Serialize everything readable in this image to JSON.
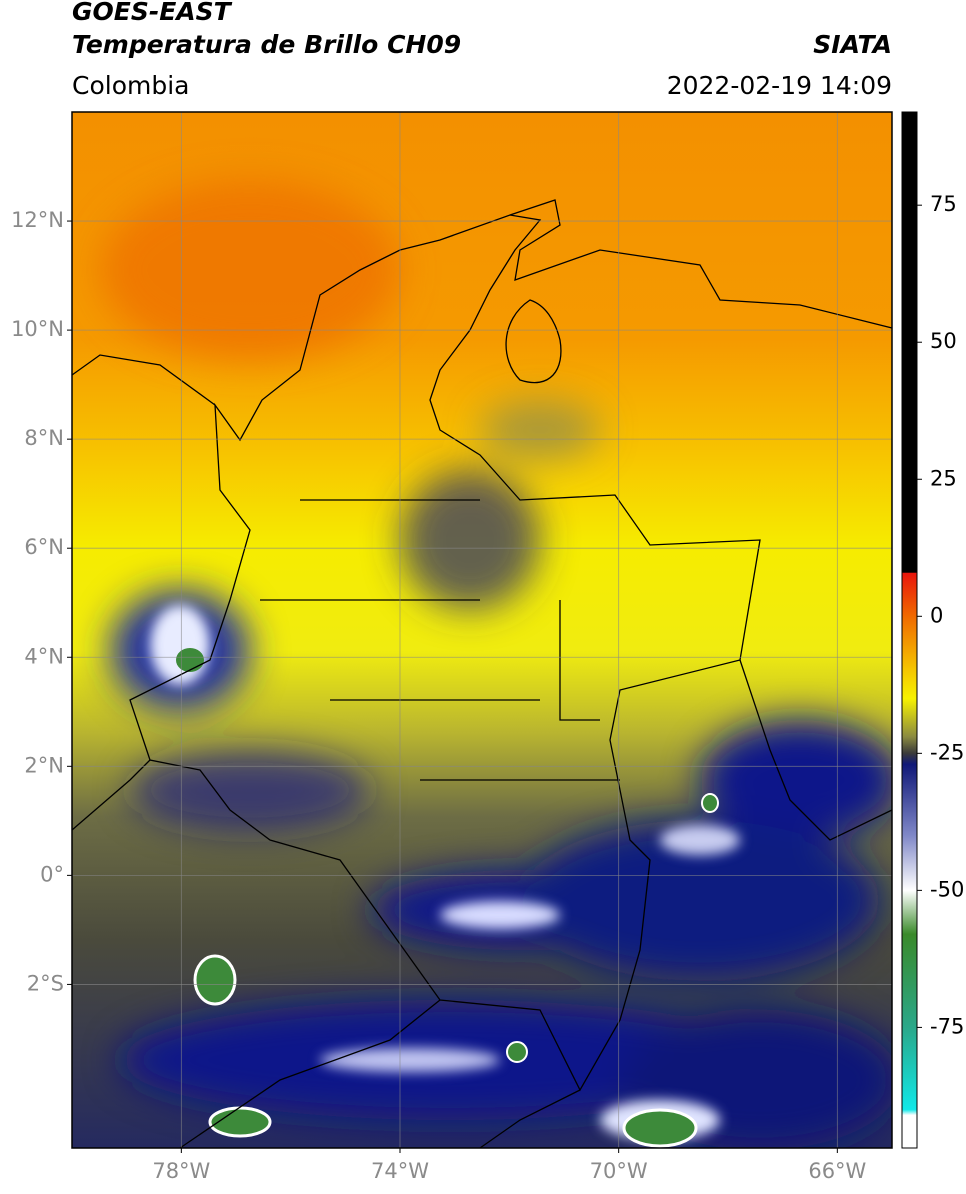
{
  "chart_data": {
    "type": "map",
    "title": "GOES-EAST",
    "subtitle": "Temperatura de Brillo CH09",
    "source": "SIATA",
    "region": "Colombia",
    "date": "2022-02-19 14:09",
    "xlim": [
      -80,
      -65
    ],
    "ylim": [
      -5,
      14
    ],
    "xticks": [
      {
        "value": -78,
        "label": "78°W"
      },
      {
        "value": -74,
        "label": "74°W"
      },
      {
        "value": -70,
        "label": "70°W"
      },
      {
        "value": -66,
        "label": "66°W"
      }
    ],
    "yticks": [
      {
        "value": 12,
        "label": "12°N"
      },
      {
        "value": 10,
        "label": "10°N"
      },
      {
        "value": 8,
        "label": "8°N"
      },
      {
        "value": 6,
        "label": "6°N"
      },
      {
        "value": 4,
        "label": "4°N"
      },
      {
        "value": 2,
        "label": "2°N"
      },
      {
        "value": 0,
        "label": "0°"
      },
      {
        "value": -2,
        "label": "2°S"
      }
    ],
    "grid": true,
    "colorbar": {
      "lim": [
        -97,
        92
      ],
      "ticks": [
        75,
        50,
        25,
        0,
        -25,
        -50,
        -75
      ],
      "colormap": [
        {
          "value": 92,
          "color": "#000000"
        },
        {
          "value": 8,
          "color": "#000000"
        },
        {
          "value": 7.9,
          "color": "#e8150c"
        },
        {
          "value": 0,
          "color": "#f06a00"
        },
        {
          "value": -10,
          "color": "#f5c800"
        },
        {
          "value": -15,
          "color": "#f7f200"
        },
        {
          "value": -22,
          "color": "#8a8a40"
        },
        {
          "value": -25,
          "color": "#3a3a3a"
        },
        {
          "value": -27,
          "color": "#101878"
        },
        {
          "value": -40,
          "color": "#8088c8"
        },
        {
          "value": -50,
          "color": "#ffffff"
        },
        {
          "value": -58,
          "color": "#3a8a2a"
        },
        {
          "value": -75,
          "color": "#2aa88a"
        },
        {
          "value": -90,
          "color": "#10e8e8"
        },
        {
          "value": -91,
          "color": "#ffffff"
        },
        {
          "value": -97,
          "color": "#ffffff"
        }
      ]
    }
  }
}
